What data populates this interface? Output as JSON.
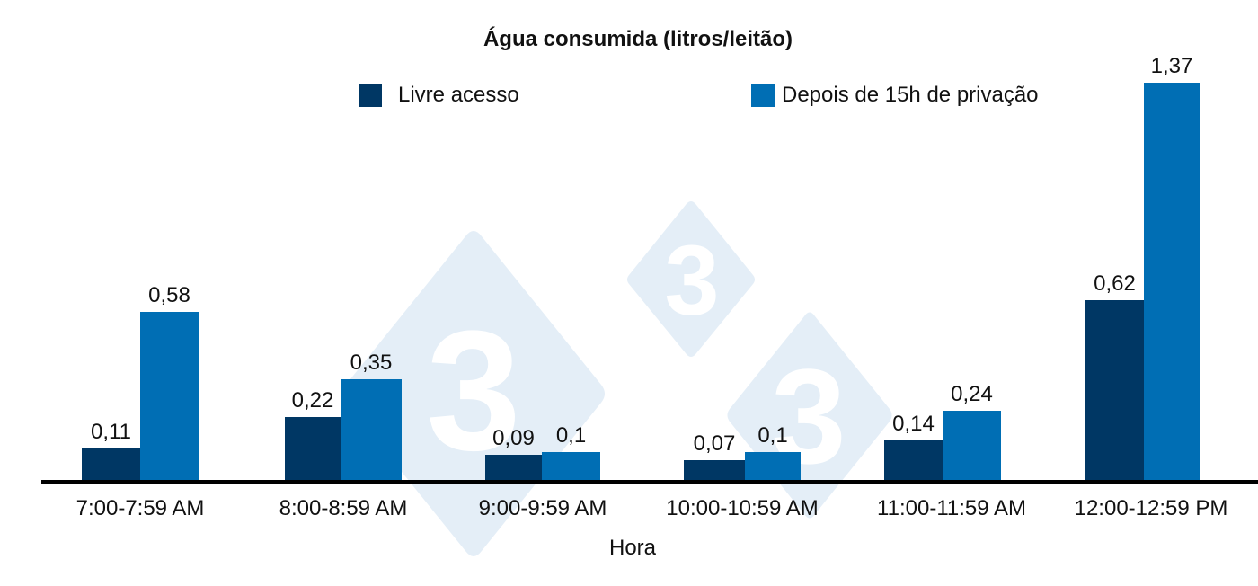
{
  "chart_data": {
    "type": "bar",
    "title": "Água consumida (litros/leitão)",
    "xlabel": "Hora",
    "ylabel": "",
    "categories": [
      "7:00-7:59 AM",
      "8:00-8:59 AM",
      "9:00-9:59 AM",
      "10:00-10:59 AM",
      "11:00-11:59 AM",
      "12:00-12:59 PM"
    ],
    "series": [
      {
        "name": "Livre acesso",
        "color": "#003764",
        "values": [
          0.11,
          0.22,
          0.09,
          0.07,
          0.14,
          0.62
        ],
        "labels": [
          "0,11",
          "0,22",
          "0,09",
          "0,07",
          "0,14",
          "0,62"
        ]
      },
      {
        "name": "Depois de 15h de privação",
        "color": "#006EB4",
        "values": [
          0.58,
          0.35,
          0.1,
          0.1,
          0.24,
          1.37
        ],
        "labels": [
          "0,58",
          "0,35",
          "0,1",
          "0,1",
          "0,24",
          "1,37"
        ]
      }
    ],
    "legend_position": "top",
    "grid": false,
    "y_axis_visible": false,
    "ylim": [
      0,
      1.4
    ]
  },
  "colors": {
    "series1": "#003764",
    "series2": "#006EB4",
    "axis": "#000000",
    "watermark": "#E4EEF7"
  },
  "watermark": {
    "glyph": "3",
    "icon": "333-logo-watermark"
  }
}
